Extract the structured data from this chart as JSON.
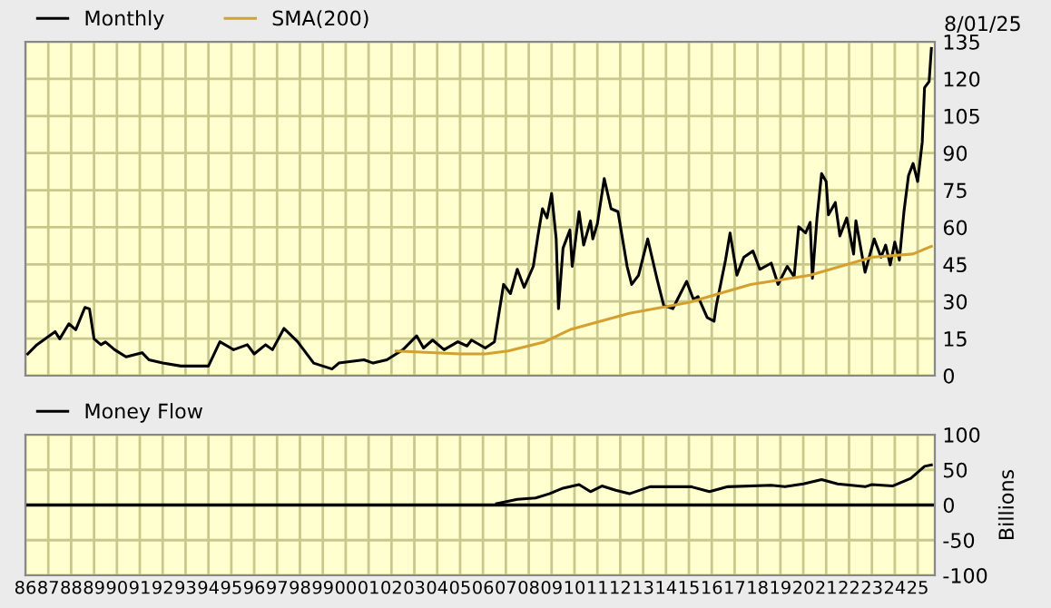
{
  "chart_data": [
    {
      "type": "line",
      "xlim": [
        1986,
        2025.75
      ],
      "xticks": [
        1986,
        1987,
        1988,
        1989,
        1990,
        1991,
        1992,
        1993,
        1994,
        1995,
        1996,
        1997,
        1998,
        1999,
        2000,
        2001,
        2002,
        2003,
        2004,
        2005,
        2006,
        2007,
        2008,
        2009,
        2010,
        2011,
        2012,
        2013,
        2014,
        2015,
        2016,
        2017,
        2018,
        2019,
        2020,
        2021,
        2022,
        2023,
        2024,
        2025
      ],
      "ylim": [
        0,
        135
      ],
      "yticks": [
        0,
        15,
        30,
        45,
        60,
        75,
        90,
        105,
        120,
        135
      ],
      "tick_labels": "y",
      "grid": true,
      "legend": "top left",
      "annotations": [
        "8/01/25"
      ],
      "series": [
        {
          "name": "Monthly",
          "color": "#000000",
          "x": [
            1986.1,
            1986.5,
            1987.3,
            1987.5,
            1987.9,
            1988.2,
            1988.6,
            1988.8,
            1989.0,
            1989.3,
            1989.5,
            1989.9,
            1990.4,
            1991.1,
            1991.4,
            1992.0,
            1992.8,
            1994.0,
            1994.5,
            1995.1,
            1995.7,
            1996.0,
            1996.5,
            1996.8,
            1997.3,
            1997.9,
            1998.6,
            1999.4,
            1999.7,
            2000.8,
            2001.2,
            2001.8,
            2002.5,
            2003.1,
            2003.4,
            2003.8,
            2004.3,
            2004.9,
            2005.3,
            2005.5,
            2006.1,
            2006.5,
            2006.9,
            2007.2,
            2007.5,
            2007.8,
            2008.2,
            2008.4,
            2008.6,
            2008.8,
            2009.0,
            2009.2,
            2009.3,
            2009.5,
            2009.8,
            2009.9,
            2010.2,
            2010.4,
            2010.7,
            2010.8,
            2011.0,
            2011.3,
            2011.6,
            2011.9,
            2012.1,
            2012.3,
            2012.5,
            2012.8,
            2013.2,
            2013.6,
            2013.9,
            2014.3,
            2014.5,
            2014.9,
            2015.2,
            2015.4,
            2015.8,
            2016.1,
            2016.2,
            2016.6,
            2016.8,
            2017.1,
            2017.4,
            2017.8,
            2018.1,
            2018.6,
            2018.9,
            2019.3,
            2019.6,
            2019.8,
            2020.1,
            2020.3,
            2020.4,
            2020.6,
            2020.8,
            2021.0,
            2021.1,
            2021.4,
            2021.6,
            2021.9,
            2022.2,
            2022.3,
            2022.7,
            2023.1,
            2023.4,
            2023.6,
            2023.8,
            2024.0,
            2024.2,
            2024.4,
            2024.6,
            2024.8,
            2025.0,
            2025.2,
            2025.3,
            2025.5,
            2025.6
          ],
          "values": [
            8.8,
            12.5,
            17.8,
            14.9,
            21,
            18.6,
            27.6,
            27,
            14.9,
            12.5,
            13.6,
            10.5,
            7.6,
            9.3,
            6.4,
            5.1,
            3.9,
            3.9,
            13.7,
            10.5,
            12.5,
            8.8,
            12.5,
            10.5,
            19.1,
            13.7,
            5.1,
            2.7,
            5.1,
            6.4,
            5.1,
            6.4,
            10.5,
            16.1,
            11.2,
            14.4,
            10.5,
            13.7,
            12,
            14.4,
            11.2,
            13.7,
            36.9,
            33.2,
            43,
            35.7,
            44.2,
            56.5,
            67.5,
            63.8,
            73.6,
            55.3,
            27.1,
            51.6,
            58.9,
            44.2,
            66.3,
            52.8,
            62.6,
            55.3,
            61.4,
            79.7,
            67.5,
            66.3,
            55.3,
            44.2,
            36.9,
            40.6,
            55.3,
            39.4,
            28.4,
            27.1,
            30.8,
            38.1,
            30.8,
            32,
            23.5,
            22,
            28.4,
            46.7,
            57.7,
            40.6,
            47.9,
            50.4,
            43,
            45.5,
            36.9,
            44.2,
            40,
            60.2,
            57.7,
            62,
            39.4,
            63.8,
            81.7,
            78.5,
            65,
            70,
            56.5,
            63.8,
            49.2,
            62.6,
            41.8,
            55.3,
            47.9,
            52.8,
            44.8,
            54,
            46.7,
            66.3,
            80.9,
            85.8,
            78.5,
            94.4,
            116.4,
            118.9,
            132.3
          ]
        },
        {
          "name": "SMA(200)",
          "color": "#d4a030",
          "x": [
            2002.2,
            2005.0,
            2006.1,
            2007.1,
            2008.7,
            2009.8,
            2012.4,
            2015.0,
            2017.7,
            2020.3,
            2023.0,
            2024.8,
            2025.6
          ],
          "values": [
            10,
            8.8,
            8.8,
            10,
            13.7,
            18.6,
            25.2,
            29.6,
            36.9,
            40.6,
            47.9,
            49.2,
            52.3
          ]
        }
      ]
    },
    {
      "type": "line",
      "xlim": [
        1986,
        2025.75
      ],
      "xticks": [
        {
          "value": 1986,
          "label": "86"
        },
        {
          "value": 1987,
          "label": "87"
        },
        {
          "value": 1988,
          "label": "88"
        },
        {
          "value": 1989,
          "label": "89"
        },
        {
          "value": 1990,
          "label": "90"
        },
        {
          "value": 1991,
          "label": "91"
        },
        {
          "value": 1992,
          "label": "92"
        },
        {
          "value": 1993,
          "label": "93"
        },
        {
          "value": 1994,
          "label": "94"
        },
        {
          "value": 1995,
          "label": "95"
        },
        {
          "value": 1996,
          "label": "96"
        },
        {
          "value": 1997,
          "label": "97"
        },
        {
          "value": 1998,
          "label": "98"
        },
        {
          "value": 1999,
          "label": "99"
        },
        {
          "value": 2000,
          "label": "00"
        },
        {
          "value": 2001,
          "label": "01"
        },
        {
          "value": 2002,
          "label": "02"
        },
        {
          "value": 2003,
          "label": "03"
        },
        {
          "value": 2004,
          "label": "04"
        },
        {
          "value": 2005,
          "label": "05"
        },
        {
          "value": 2006,
          "label": "06"
        },
        {
          "value": 2007,
          "label": "07"
        },
        {
          "value": 2008,
          "label": "08"
        },
        {
          "value": 2009,
          "label": "09"
        },
        {
          "value": 2010,
          "label": "10"
        },
        {
          "value": 2011,
          "label": "11"
        },
        {
          "value": 2012,
          "label": "12"
        },
        {
          "value": 2013,
          "label": "13"
        },
        {
          "value": 2014,
          "label": "14"
        },
        {
          "value": 2015,
          "label": "15"
        },
        {
          "value": 2016,
          "label": "16"
        },
        {
          "value": 2017,
          "label": "17"
        },
        {
          "value": 2018,
          "label": "18"
        },
        {
          "value": 2019,
          "label": "19"
        },
        {
          "value": 2020,
          "label": "20"
        },
        {
          "value": 2021,
          "label": "21"
        },
        {
          "value": 2022,
          "label": "22"
        },
        {
          "value": 2023,
          "label": "23"
        },
        {
          "value": 2024,
          "label": "24"
        },
        {
          "value": 2025,
          "label": "25"
        }
      ],
      "ylim": [
        -100,
        100
      ],
      "yticks": [
        -100,
        -50,
        0,
        50,
        100
      ],
      "ylabel": "Billions",
      "grid": true,
      "legend": "top left",
      "ref_lines": [
        {
          "axis": "y",
          "value": 0,
          "color": "#000000"
        }
      ],
      "series": [
        {
          "name": "Money Flow",
          "color": "#000000",
          "x": [
            2006.6,
            2007.5,
            2008.3,
            2008.9,
            2009.5,
            2010.2,
            2010.7,
            2011.2,
            2011.8,
            2012.4,
            2013.3,
            2015.1,
            2015.9,
            2016.7,
            2018.6,
            2019.2,
            2020.0,
            2020.8,
            2021.5,
            2022.7,
            2023.0,
            2023.9,
            2024.7,
            2025.3,
            2025.6
          ],
          "values": [
            2,
            8,
            10,
            16,
            24,
            29,
            19,
            27,
            21,
            16,
            26,
            26,
            19,
            26,
            28,
            26,
            30,
            36,
            30,
            26,
            29,
            27,
            38,
            55,
            57
          ]
        }
      ]
    }
  ]
}
